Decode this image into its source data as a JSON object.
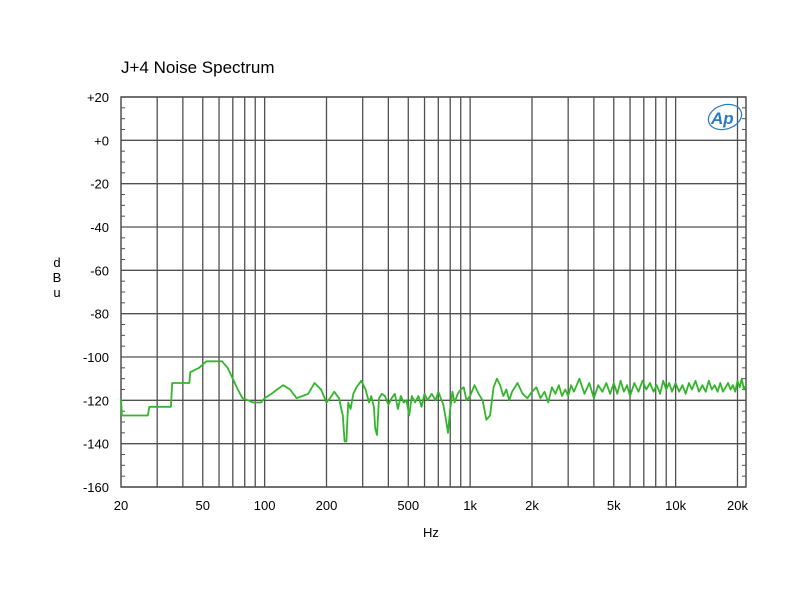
{
  "chart_data": {
    "type": "line",
    "title": "J+4 Noise Spectrum",
    "xlabel": "Hz",
    "ylabel": "dBu",
    "xscale": "log",
    "xlim": [
      20,
      22000
    ],
    "ylim": [
      -160,
      20
    ],
    "grid": true,
    "logo": "Ap",
    "colors": {
      "series": "#33b52c",
      "grid": "#505050",
      "logo": "#2b7bc0"
    },
    "ytick_values": [
      20,
      0,
      -20,
      -40,
      -60,
      -80,
      -100,
      -120,
      -140,
      -160
    ],
    "ytick_labels": [
      "+20",
      "+0",
      "-20",
      "-40",
      "-60",
      "-80",
      "-100",
      "-120",
      "-140",
      "-160"
    ],
    "xtick_values": [
      20,
      50,
      100,
      200,
      500,
      1000,
      2000,
      5000,
      10000,
      20000
    ],
    "xtick_labels": [
      "20",
      "50",
      "100",
      "200",
      "500",
      "1k",
      "2k",
      "5k",
      "10k",
      "20k"
    ],
    "series": [
      {
        "color": "#33b52c",
        "points": [
          [
            20,
            -119
          ],
          [
            20.2,
            -127
          ],
          [
            27,
            -127
          ],
          [
            27.5,
            -123
          ],
          [
            35,
            -123
          ],
          [
            35.5,
            -112
          ],
          [
            43,
            -112
          ],
          [
            43.5,
            -107
          ],
          [
            48,
            -105
          ],
          [
            52,
            -102
          ],
          [
            62,
            -102
          ],
          [
            66,
            -105
          ],
          [
            70,
            -110
          ],
          [
            74,
            -115
          ],
          [
            78,
            -119
          ],
          [
            83,
            -120
          ],
          [
            88,
            -121
          ],
          [
            96,
            -121
          ],
          [
            100,
            -119
          ],
          [
            108,
            -117
          ],
          [
            115,
            -115
          ],
          [
            123,
            -113
          ],
          [
            133,
            -115
          ],
          [
            143,
            -119
          ],
          [
            153,
            -118
          ],
          [
            163,
            -117
          ],
          [
            175,
            -112
          ],
          [
            188,
            -115
          ],
          [
            200,
            -121
          ],
          [
            208,
            -119
          ],
          [
            218,
            -116
          ],
          [
            230,
            -119
          ],
          [
            240,
            -127
          ],
          [
            245,
            -139
          ],
          [
            250,
            -139
          ],
          [
            255,
            -121
          ],
          [
            262,
            -124
          ],
          [
            270,
            -117
          ],
          [
            280,
            -114
          ],
          [
            295,
            -111
          ],
          [
            310,
            -115
          ],
          [
            322,
            -121
          ],
          [
            330,
            -118
          ],
          [
            340,
            -123
          ],
          [
            345,
            -133
          ],
          [
            352,
            -136
          ],
          [
            360,
            -119
          ],
          [
            372,
            -117
          ],
          [
            385,
            -118
          ],
          [
            400,
            -122
          ],
          [
            415,
            -119
          ],
          [
            430,
            -117
          ],
          [
            445,
            -124
          ],
          [
            460,
            -118
          ],
          [
            475,
            -121
          ],
          [
            490,
            -120
          ],
          [
            505,
            -127
          ],
          [
            520,
            -118
          ],
          [
            540,
            -121
          ],
          [
            560,
            -118
          ],
          [
            580,
            -123
          ],
          [
            600,
            -117
          ],
          [
            620,
            -120
          ],
          [
            650,
            -117
          ],
          [
            680,
            -120
          ],
          [
            700,
            -116
          ],
          [
            720,
            -119
          ],
          [
            740,
            -122
          ],
          [
            760,
            -128
          ],
          [
            780,
            -135
          ],
          [
            800,
            -124
          ],
          [
            820,
            -116
          ],
          [
            840,
            -121
          ],
          [
            870,
            -117
          ],
          [
            900,
            -115
          ],
          [
            930,
            -114
          ],
          [
            960,
            -120
          ],
          [
            1000,
            -118
          ],
          [
            1050,
            -113
          ],
          [
            1100,
            -117
          ],
          [
            1150,
            -120
          ],
          [
            1200,
            -129
          ],
          [
            1250,
            -127
          ],
          [
            1300,
            -114
          ],
          [
            1350,
            -110
          ],
          [
            1400,
            -113
          ],
          [
            1450,
            -118
          ],
          [
            1500,
            -115
          ],
          [
            1550,
            -120
          ],
          [
            1600,
            -116
          ],
          [
            1700,
            -112
          ],
          [
            1800,
            -117
          ],
          [
            1900,
            -119
          ],
          [
            2000,
            -116
          ],
          [
            2100,
            -114
          ],
          [
            2200,
            -119
          ],
          [
            2300,
            -116
          ],
          [
            2400,
            -121
          ],
          [
            2500,
            -114
          ],
          [
            2600,
            -117
          ],
          [
            2700,
            -113
          ],
          [
            2800,
            -118
          ],
          [
            2900,
            -115
          ],
          [
            3000,
            -118
          ],
          [
            3100,
            -113
          ],
          [
            3200,
            -116
          ],
          [
            3400,
            -110
          ],
          [
            3600,
            -117
          ],
          [
            3800,
            -112
          ],
          [
            4000,
            -119
          ],
          [
            4200,
            -113
          ],
          [
            4400,
            -116
          ],
          [
            4600,
            -112
          ],
          [
            4800,
            -117
          ],
          [
            5000,
            -112
          ],
          [
            5200,
            -117
          ],
          [
            5400,
            -111
          ],
          [
            5600,
            -116
          ],
          [
            5800,
            -113
          ],
          [
            6000,
            -118
          ],
          [
            6300,
            -112
          ],
          [
            6600,
            -116
          ],
          [
            6900,
            -111
          ],
          [
            7200,
            -115
          ],
          [
            7500,
            -112
          ],
          [
            7800,
            -116
          ],
          [
            8100,
            -113
          ],
          [
            8400,
            -117
          ],
          [
            8700,
            -111
          ],
          [
            9000,
            -115
          ],
          [
            9300,
            -112
          ],
          [
            9600,
            -116
          ],
          [
            10000,
            -112
          ],
          [
            10400,
            -116
          ],
          [
            10800,
            -113
          ],
          [
            11200,
            -117
          ],
          [
            11600,
            -112
          ],
          [
            12000,
            -115
          ],
          [
            12500,
            -111
          ],
          [
            13000,
            -116
          ],
          [
            13500,
            -113
          ],
          [
            14000,
            -116
          ],
          [
            14500,
            -111
          ],
          [
            15000,
            -115
          ],
          [
            15500,
            -113
          ],
          [
            16000,
            -116
          ],
          [
            16500,
            -112
          ],
          [
            17000,
            -116
          ],
          [
            17500,
            -114
          ],
          [
            18000,
            -112
          ],
          [
            18500,
            -115
          ],
          [
            19000,
            -113
          ],
          [
            19500,
            -116
          ],
          [
            20000,
            -111
          ],
          [
            20500,
            -114
          ],
          [
            21000,
            -110
          ],
          [
            21500,
            -115
          ],
          [
            22000,
            -113
          ]
        ]
      }
    ]
  }
}
